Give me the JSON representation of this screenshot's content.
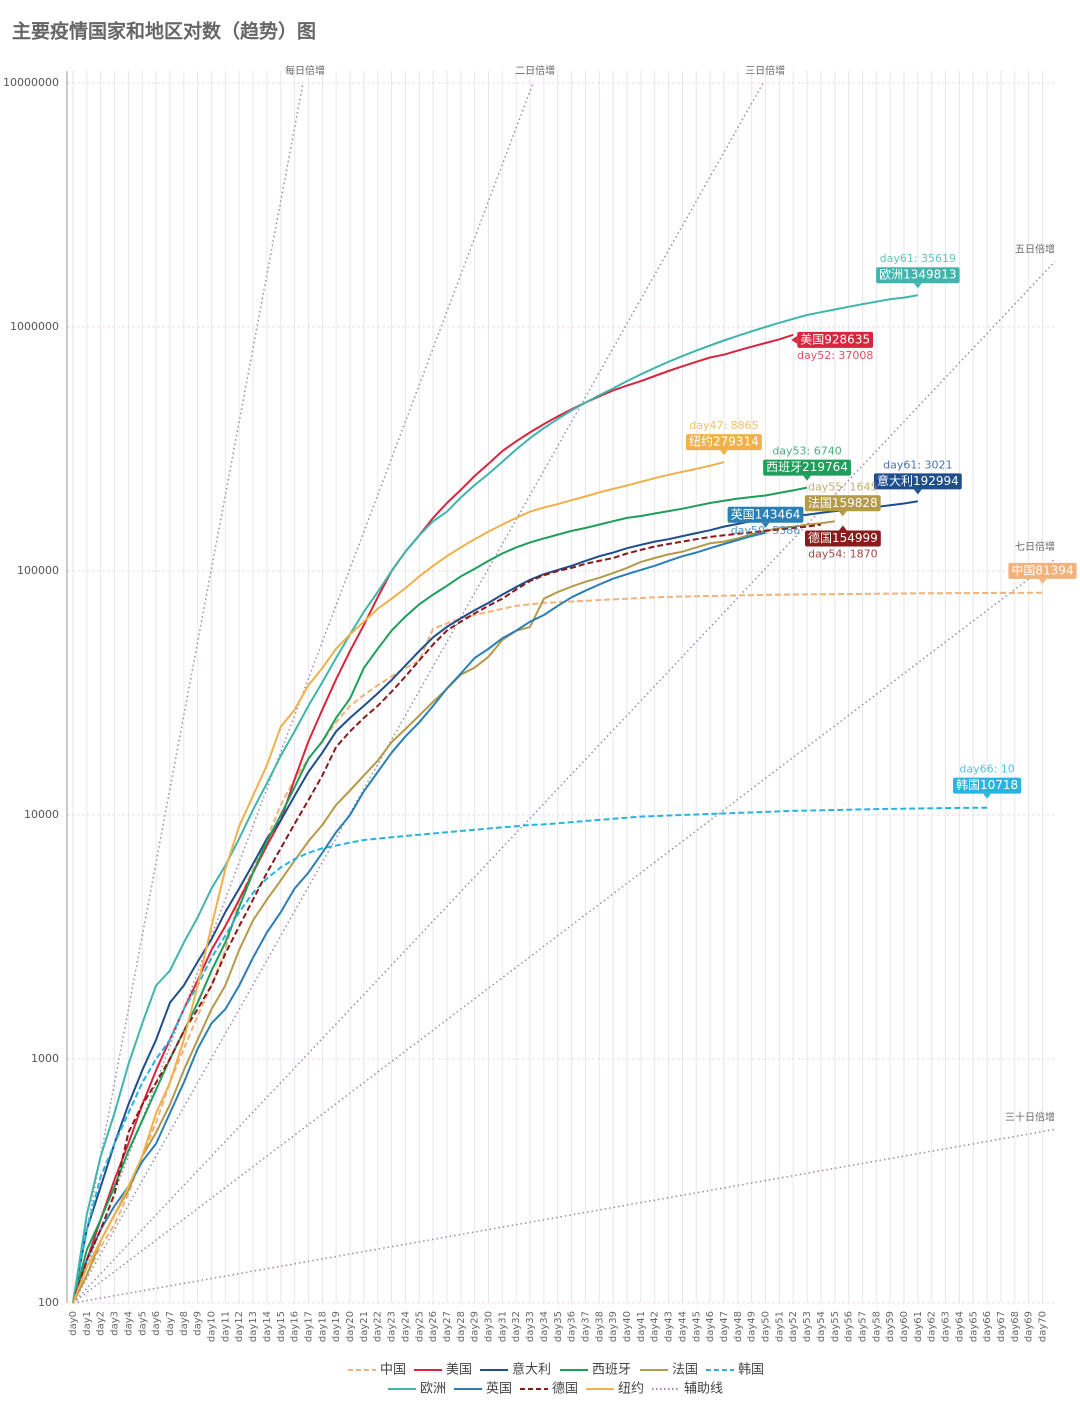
{
  "chart_data": {
    "type": "line",
    "title": "主要疫情国家和地区对数（趋势）图",
    "log_scale": true,
    "grid": true,
    "ylim": [
      100,
      10000000
    ],
    "yticks": [
      100,
      1000,
      10000,
      100000,
      1000000,
      10000000
    ],
    "categories": [
      "day0",
      "day1",
      "day2",
      "day3",
      "day4",
      "day5",
      "day6",
      "day7",
      "day8",
      "day9",
      "day10",
      "day11",
      "day12",
      "day13",
      "day14",
      "day15",
      "day16",
      "day17",
      "day18",
      "day19",
      "day20",
      "day21",
      "day22",
      "day23",
      "day24",
      "day25",
      "day26",
      "day27",
      "day28",
      "day29",
      "day30",
      "day31",
      "day32",
      "day33",
      "day34",
      "day35",
      "day36",
      "day37",
      "day38",
      "day39",
      "day40",
      "day41",
      "day42",
      "day43",
      "day44",
      "day45",
      "day46",
      "day47",
      "day48",
      "day49",
      "day50",
      "day51",
      "day52",
      "day53",
      "day54",
      "day55",
      "day56",
      "day57",
      "day58",
      "day59",
      "day60",
      "day61",
      "day62",
      "day63",
      "day64",
      "day65",
      "day66",
      "day67",
      "day68",
      "day69",
      "day70"
    ],
    "series": [
      {
        "name": "中国",
        "color": "#f2b27a",
        "dash": "dashed",
        "end_label": "中国81394",
        "values": [
          100,
          130,
          170,
          210,
          280,
          400,
          550,
          800,
          1100,
          1500,
          2000,
          2800,
          4500,
          6000,
          8000,
          11000,
          14000,
          17000,
          20000,
          24000,
          28000,
          31000,
          34000,
          37000,
          40000,
          43000,
          58000,
          61000,
          64000,
          66000,
          68000,
          70000,
          72000,
          73000,
          74000,
          74500,
          75000,
          75500,
          76000,
          76500,
          77000,
          77500,
          78000,
          78300,
          78600,
          78800,
          79000,
          79200,
          79400,
          79600,
          79800,
          80000,
          80100,
          80200,
          80300,
          80400,
          80500,
          80600,
          80700,
          80800,
          80900,
          81000,
          81050,
          81100,
          81150,
          81200,
          81250,
          81300,
          81340,
          81370,
          81394
        ]
      },
      {
        "name": "美国",
        "color": "#d7263d",
        "dash": "solid",
        "end_label": "美国928635",
        "sub_label": "day52: 37008",
        "values": [
          100,
          150,
          220,
          320,
          450,
          650,
          900,
          1200,
          1600,
          2100,
          2800,
          3500,
          4500,
          5800,
          7500,
          9500,
          14000,
          20000,
          27000,
          36000,
          47000,
          60000,
          78000,
          100000,
          120000,
          140000,
          165000,
          190000,
          215000,
          245000,
          275000,
          310000,
          340000,
          370000,
          400000,
          430000,
          460000,
          490000,
          520000,
          550000,
          575000,
          600000,
          630000,
          660000,
          690000,
          720000,
          750000,
          770000,
          800000,
          830000,
          860000,
          890000,
          928635,
          null,
          null,
          null,
          null,
          null,
          null,
          null,
          null,
          null,
          null,
          null,
          null,
          null,
          null,
          null,
          null,
          null,
          null
        ]
      },
      {
        "name": "意大利",
        "color": "#1f4e8c",
        "dash": "solid",
        "end_label": "意大利192994",
        "sub_label": "day61: 3021",
        "values": [
          100,
          200,
          300,
          450,
          650,
          900,
          1200,
          1700,
          2000,
          2500,
          3100,
          4000,
          5000,
          6300,
          8000,
          9500,
          12000,
          15000,
          18000,
          22000,
          25000,
          28000,
          31500,
          35700,
          41000,
          47000,
          53500,
          59000,
          64000,
          69000,
          74000,
          80000,
          86000,
          92000,
          97000,
          101000,
          105000,
          110000,
          115000,
          119000,
          124000,
          128000,
          132000,
          135000,
          139000,
          143000,
          147000,
          152000,
          156000,
          160000,
          162000,
          165000,
          168000,
          170000,
          173000,
          176000,
          178000,
          181000,
          183000,
          186000,
          189000,
          192994,
          null,
          null,
          null,
          null,
          null,
          null,
          null,
          null,
          null
        ]
      },
      {
        "name": "西班牙",
        "color": "#1e9e5a",
        "dash": "solid",
        "end_label": "西班牙219764",
        "sub_label": "day53: 6740",
        "values": [
          100,
          165,
          220,
          300,
          420,
          560,
          750,
          1000,
          1300,
          1700,
          2300,
          3000,
          4200,
          5800,
          7800,
          10000,
          13000,
          17000,
          20000,
          25000,
          30000,
          40000,
          48000,
          57000,
          65000,
          73000,
          80000,
          87000,
          95000,
          102000,
          110000,
          118000,
          125000,
          131000,
          136000,
          141000,
          146000,
          150000,
          155000,
          160000,
          165000,
          168000,
          172000,
          176000,
          180000,
          185000,
          190000,
          194000,
          198000,
          201000,
          204000,
          209000,
          214000,
          219764,
          null,
          null,
          null,
          null,
          null,
          null,
          null,
          null,
          null,
          null,
          null,
          null,
          null,
          null,
          null,
          null,
          null
        ]
      },
      {
        "name": "法国",
        "color": "#b59a4a",
        "dash": "solid",
        "end_label": "法国159828",
        "sub_label": "day55: 1645",
        "values": [
          100,
          130,
          180,
          230,
          290,
          400,
          500,
          650,
          900,
          1200,
          1600,
          2000,
          2800,
          3700,
          4500,
          5400,
          6500,
          7800,
          9100,
          11000,
          12600,
          14500,
          16700,
          19900,
          22500,
          25600,
          29100,
          32900,
          37600,
          40200,
          44500,
          52100,
          56900,
          59000,
          77000,
          82000,
          86300,
          90300,
          93800,
          98000,
          103000,
          109000,
          113000,
          117000,
          120000,
          125000,
          130000,
          132000,
          136000,
          141000,
          146000,
          150000,
          152000,
          155000,
          157000,
          159828,
          null,
          null,
          null,
          null,
          null,
          null,
          null,
          null,
          null,
          null,
          null,
          null,
          null,
          null,
          null
        ]
      },
      {
        "name": "韩国",
        "color": "#2bb3e0",
        "dash": "dashed",
        "end_label": "韩国10718",
        "sub_label": "day66: 10",
        "values": [
          100,
          200,
          330,
          450,
          600,
          800,
          1000,
          1200,
          1600,
          2000,
          2600,
          3200,
          4000,
          4800,
          5500,
          6100,
          6600,
          7000,
          7300,
          7500,
          7700,
          7900,
          8000,
          8100,
          8200,
          8300,
          8400,
          8500,
          8600,
          8700,
          8800,
          8900,
          9000,
          9100,
          9150,
          9250,
          9350,
          9450,
          9550,
          9650,
          9750,
          9850,
          9900,
          9950,
          10000,
          10050,
          10100,
          10150,
          10200,
          10250,
          10300,
          10350,
          10400,
          10420,
          10450,
          10480,
          10510,
          10540,
          10570,
          10590,
          10610,
          10630,
          10650,
          10670,
          10690,
          10700,
          10718,
          null,
          null,
          null,
          null
        ]
      },
      {
        "name": "欧洲",
        "color": "#3fb5ad",
        "dash": "solid",
        "end_label": "欧洲1349813",
        "sub_label": "day61: 35619",
        "values": [
          100,
          230,
          400,
          600,
          950,
          1400,
          2000,
          2300,
          3000,
          3800,
          5000,
          6200,
          8000,
          10500,
          13500,
          17500,
          22000,
          28000,
          35000,
          44000,
          55000,
          68000,
          82000,
          100000,
          120000,
          140000,
          160000,
          175000,
          200000,
          225000,
          250000,
          280000,
          315000,
          350000,
          385000,
          420000,
          455000,
          490000,
          525000,
          560000,
          600000,
          640000,
          680000,
          720000,
          760000,
          800000,
          840000,
          880000,
          920000,
          960000,
          1000000,
          1040000,
          1080000,
          1120000,
          1150000,
          1180000,
          1210000,
          1240000,
          1270000,
          1300000,
          1320000,
          1349813,
          null,
          null,
          null,
          null,
          null,
          null,
          null,
          null,
          null
        ]
      },
      {
        "name": "英国",
        "color": "#2a7fb5",
        "dash": "solid",
        "end_label": "英国143464",
        "sub_label": "day50: 5386",
        "values": [
          100,
          150,
          200,
          250,
          300,
          380,
          450,
          600,
          800,
          1100,
          1400,
          1600,
          2000,
          2600,
          3300,
          4000,
          5000,
          5800,
          7000,
          8500,
          10000,
          12500,
          15000,
          18000,
          21000,
          24000,
          28000,
          33000,
          38000,
          44000,
          48000,
          53000,
          57000,
          62000,
          66000,
          72000,
          78000,
          83000,
          88000,
          93000,
          97000,
          101000,
          105000,
          110000,
          115000,
          119000,
          124000,
          129000,
          134000,
          139000,
          143464,
          null,
          null,
          null,
          null,
          null,
          null,
          null,
          null,
          null,
          null,
          null,
          null,
          null,
          null,
          null,
          null,
          null,
          null,
          null,
          null
        ]
      },
      {
        "name": "德国",
        "color": "#8b1a1a",
        "dash": "dashed",
        "end_label": "德国154999",
        "sub_label": "day54: 1870",
        "values": [
          100,
          150,
          200,
          280,
          500,
          650,
          800,
          1000,
          1300,
          1600,
          2000,
          2700,
          3500,
          4500,
          5800,
          7300,
          9200,
          11500,
          14500,
          19000,
          22000,
          25000,
          28000,
          32000,
          37000,
          43000,
          50000,
          57000,
          62000,
          67000,
          72000,
          77000,
          84000,
          91000,
          96000,
          100000,
          103000,
          107000,
          110000,
          113000,
          118000,
          122000,
          126000,
          129000,
          132000,
          135000,
          138000,
          140000,
          142000,
          144000,
          146000,
          148000,
          150000,
          152000,
          154999,
          null,
          null,
          null,
          null,
          null,
          null,
          null,
          null,
          null,
          null,
          null,
          null,
          null,
          null,
          null,
          null
        ]
      },
      {
        "name": "纽约",
        "color": "#f0b04a",
        "dash": "solid",
        "end_label": "纽约279314",
        "sub_label": "day47: 8865",
        "values": [
          100,
          140,
          180,
          230,
          300,
          400,
          600,
          800,
          1200,
          2000,
          3500,
          6000,
          9000,
          12000,
          16000,
          23000,
          27000,
          34000,
          40000,
          48000,
          55000,
          62000,
          70000,
          77000,
          85000,
          95000,
          105000,
          115000,
          125000,
          135000,
          145000,
          155000,
          165000,
          175000,
          182000,
          188000,
          195000,
          202000,
          210000,
          217000,
          224000,
          232000,
          240000,
          248000,
          255000,
          262000,
          270000,
          279314,
          null,
          null,
          null,
          null,
          null,
          null,
          null,
          null,
          null,
          null,
          null,
          null,
          null,
          null,
          null,
          null,
          null,
          null,
          null,
          null,
          null,
          null,
          null
        ]
      }
    ],
    "guide_legend": "辅助线",
    "guide_color": "#a08aa0",
    "guides": [
      {
        "label": "每日倍增",
        "days": 1
      },
      {
        "label": "二日倍增",
        "days": 2
      },
      {
        "label": "三日倍增",
        "days": 3
      },
      {
        "label": "五日倍增",
        "days": 5
      },
      {
        "label": "七日倍增",
        "days": 7
      },
      {
        "label": "三十日倍增",
        "days": 30
      }
    ]
  }
}
